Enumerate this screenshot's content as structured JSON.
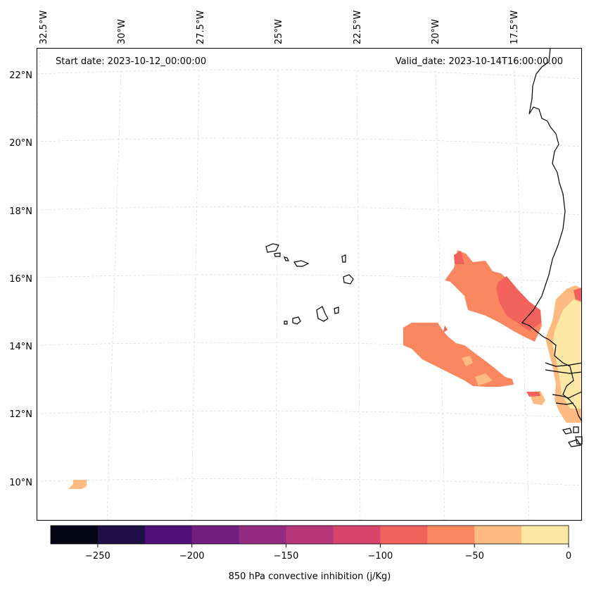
{
  "map": {
    "start_date": "Start date: 2023-10-12_00:00:00",
    "valid_date": "Valid_date: 2023-10-14T16:00:00.00",
    "lon_labels": [
      "32.5°W",
      "30°W",
      "27.5°W",
      "25°W",
      "22.5°W",
      "20°W",
      "17.5°W"
    ],
    "lat_labels": [
      "22°N",
      "20°N",
      "18°N",
      "16°N",
      "14°N",
      "12°N",
      "10°N"
    ],
    "colors": {
      "frame": "#000000",
      "grid": "#cccccc",
      "coastline": "#000000"
    }
  },
  "colorbar": {
    "label": "850 hPa convective inhibition (j/Kg)",
    "ticks": [
      "−250",
      "−200",
      "−150",
      "−100",
      "−50",
      "0"
    ],
    "colors": [
      "#050416",
      "#1f1147",
      "#4f127b",
      "#721f81",
      "#932b80",
      "#b73779",
      "#d8456c",
      "#f2625d",
      "#fb8761",
      "#febb81",
      "#fde8a5"
    ]
  }
}
